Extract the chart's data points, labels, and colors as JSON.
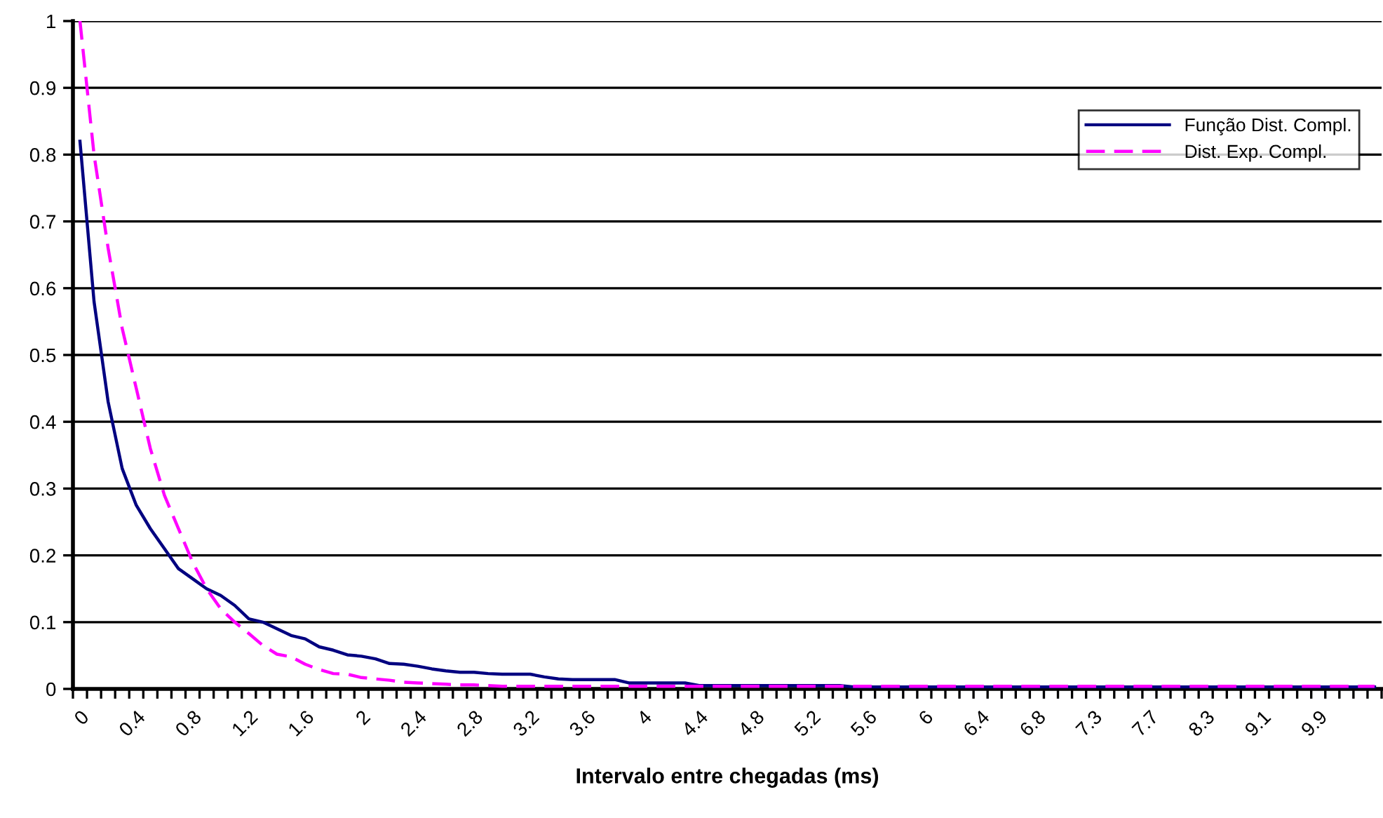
{
  "chart_data": {
    "type": "line",
    "xlabel": "Intervalo entre chegadas (ms)",
    "categories": [
      "0",
      null,
      null,
      null,
      "0.4",
      null,
      null,
      null,
      "0.8",
      null,
      null,
      null,
      "1.2",
      null,
      null,
      null,
      "1.6",
      null,
      null,
      null,
      "2",
      null,
      null,
      null,
      "2.4",
      null,
      null,
      null,
      "2.8",
      null,
      null,
      null,
      "3.2",
      null,
      null,
      null,
      "3.6",
      null,
      null,
      null,
      "4",
      null,
      null,
      null,
      "4.4",
      null,
      null,
      null,
      "4.8",
      null,
      null,
      null,
      "5.2",
      null,
      null,
      null,
      "5.6",
      null,
      null,
      null,
      "6",
      null,
      null,
      null,
      "6.4",
      null,
      null,
      null,
      "6.8",
      null,
      null,
      null,
      "7.3",
      null,
      null,
      null,
      "7.7",
      null,
      null,
      null,
      "8.3",
      null,
      null,
      null,
      "9.1",
      null,
      null,
      null,
      "9.9",
      null,
      null,
      null,
      null
    ],
    "series": [
      {
        "name": "Função Dist. Compl.",
        "color": "#000080",
        "line_style": "solid",
        "values": [
          0.82,
          0.58,
          0.43,
          0.33,
          0.275,
          0.24,
          0.21,
          0.18,
          0.165,
          0.15,
          0.14,
          0.125,
          0.105,
          0.1,
          0.09,
          0.08,
          0.075,
          0.063,
          0.058,
          0.051,
          0.049,
          0.045,
          0.038,
          0.037,
          0.034,
          0.03,
          0.027,
          0.025,
          0.025,
          0.023,
          0.022,
          0.022,
          0.022,
          0.018,
          0.015,
          0.014,
          0.014,
          0.014,
          0.014,
          0.009,
          0.009,
          0.009,
          0.009,
          0.009,
          0.005,
          0.005,
          0.005,
          0.005,
          0.005,
          0.005,
          0.005,
          0.005,
          0.005,
          0.005,
          0.005,
          0.003,
          0.003,
          0.003,
          0.003,
          0.003,
          0.003,
          0.003,
          0.003,
          0.003,
          0.003,
          0.003,
          0.003,
          0.003,
          0.003,
          0.003,
          0.003,
          0.003,
          0.003,
          0.003,
          0.003,
          0.003,
          0.003,
          0.003,
          0.003,
          0.003,
          0.003,
          0.003,
          0.003,
          0.003,
          0.003,
          0.003,
          0.003,
          0.003,
          0.003,
          0.003,
          0.003,
          0.003,
          0.003
        ]
      },
      {
        "name": "Dist. Exp. Compl.",
        "color": "#ff00ff",
        "line_style": "dashed",
        "values": [
          1.0,
          0.8,
          0.66,
          0.54,
          0.45,
          0.36,
          0.29,
          0.24,
          0.19,
          0.15,
          0.12,
          0.1,
          0.083,
          0.065,
          0.052,
          0.048,
          0.037,
          0.029,
          0.023,
          0.022,
          0.017,
          0.015,
          0.013,
          0.01,
          0.009,
          0.008,
          0.007,
          0.006,
          0.006,
          0.005,
          0.004,
          0.004,
          0.004,
          0.004,
          0.004,
          0.004,
          0.004,
          0.004,
          0.004,
          0.004,
          0.004,
          0.004,
          0.004,
          0.004,
          0.004,
          0.004,
          0.004,
          0.004,
          0.004,
          0.004,
          0.004,
          0.004,
          0.004,
          0.004,
          0.004,
          0.004,
          0.004,
          0.004,
          0.004,
          0.004,
          0.004,
          0.004,
          0.004,
          0.004,
          0.004,
          0.004,
          0.004,
          0.004,
          0.004,
          0.004,
          0.004,
          0.004,
          0.004,
          0.004,
          0.004,
          0.004,
          0.004,
          0.004,
          0.004,
          0.004,
          0.004,
          0.004,
          0.004,
          0.004,
          0.004,
          0.004,
          0.004,
          0.004,
          0.004,
          0.004,
          0.004,
          0.004,
          0.004
        ]
      }
    ],
    "ylim": [
      0,
      1
    ],
    "yticks": [
      0,
      0.1,
      0.2,
      0.3,
      0.4,
      0.5,
      0.6,
      0.7,
      0.8,
      0.9,
      1
    ],
    "grid": "y",
    "legend": "top right",
    "marker": "none"
  }
}
